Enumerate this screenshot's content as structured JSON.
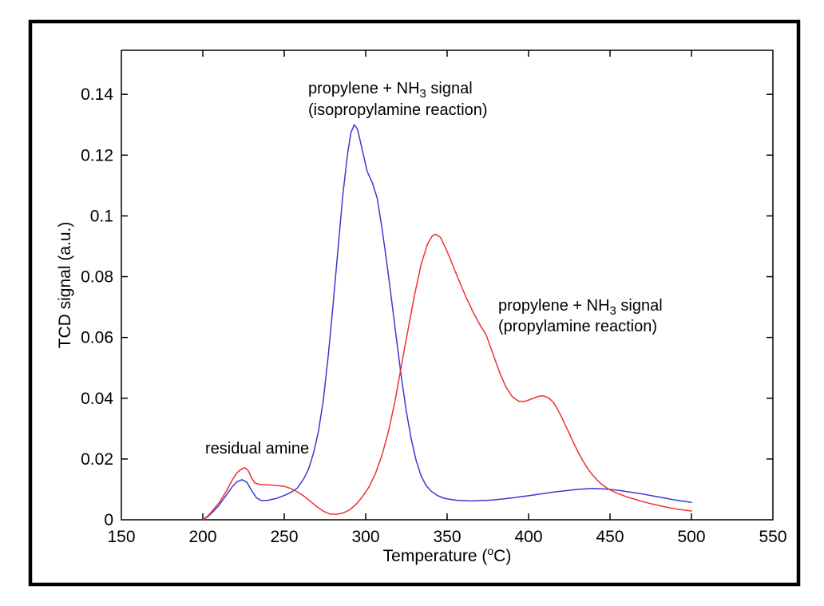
{
  "figure": {
    "background": "#ffffff",
    "frame_color": "#000000",
    "axis_color": "#000000",
    "text_color": "#000000"
  },
  "chart_data": {
    "type": "line",
    "title": "",
    "xlabel": "Temperature (°C)",
    "xlabel_segments": [
      {
        "t": "Temperature ("
      },
      {
        "t": "o",
        "style": "sup"
      },
      {
        "t": "C)"
      }
    ],
    "ylabel": "TCD signal (a.u.)",
    "xlim": [
      150,
      550
    ],
    "ylim": [
      0,
      0.1545
    ],
    "xticks": [
      150,
      200,
      250,
      300,
      350,
      400,
      450,
      500,
      550
    ],
    "xtick_labels": [
      "150",
      "200",
      "250",
      "300",
      "350",
      "400",
      "450",
      "500",
      "550"
    ],
    "yticks": [
      0,
      0.02,
      0.04,
      0.06,
      0.08,
      0.1,
      0.12,
      0.14
    ],
    "ytick_labels": [
      "0",
      "0.02",
      "0.04",
      "0.06",
      "0.08",
      "0.1",
      "0.12",
      "0.14"
    ],
    "grid": false,
    "legend_position": "none",
    "series": [
      {
        "name": "isopropylamine reaction (propylene + NH3 signal)",
        "color": "#3a3ad0",
        "points": [
          [
            200,
            0
          ],
          [
            203,
            0.001
          ],
          [
            206,
            0.0025
          ],
          [
            210,
            0.0048
          ],
          [
            214,
            0.0078
          ],
          [
            218,
            0.0108
          ],
          [
            221,
            0.0125
          ],
          [
            224,
            0.0132
          ],
          [
            227,
            0.0124
          ],
          [
            230,
            0.0096
          ],
          [
            233,
            0.0072
          ],
          [
            236,
            0.0063
          ],
          [
            240,
            0.0064
          ],
          [
            245,
            0.007
          ],
          [
            250,
            0.008
          ],
          [
            254,
            0.009
          ],
          [
            258,
            0.0104
          ],
          [
            262,
            0.0135
          ],
          [
            265,
            0.0168
          ],
          [
            268,
            0.022
          ],
          [
            271,
            0.029
          ],
          [
            274,
            0.0395
          ],
          [
            277,
            0.054
          ],
          [
            280,
            0.071
          ],
          [
            283,
            0.089
          ],
          [
            286,
            0.107
          ],
          [
            289,
            0.121
          ],
          [
            291,
            0.1275
          ],
          [
            293,
            0.13
          ],
          [
            295,
            0.1285
          ],
          [
            298,
            0.1215
          ],
          [
            301,
            0.1145
          ],
          [
            304,
            0.111
          ],
          [
            307,
            0.106
          ],
          [
            310,
            0.096
          ],
          [
            313,
            0.0845
          ],
          [
            316,
            0.072
          ],
          [
            319,
            0.059
          ],
          [
            322,
            0.0465
          ],
          [
            325,
            0.0355
          ],
          [
            328,
            0.0265
          ],
          [
            331,
            0.0195
          ],
          [
            334,
            0.0145
          ],
          [
            337,
            0.0113
          ],
          [
            340,
            0.0095
          ],
          [
            344,
            0.008
          ],
          [
            348,
            0.0071
          ],
          [
            352,
            0.0067
          ],
          [
            356,
            0.0064
          ],
          [
            360,
            0.0063
          ],
          [
            365,
            0.0062
          ],
          [
            370,
            0.0063
          ],
          [
            375,
            0.0064
          ],
          [
            380,
            0.0066
          ],
          [
            385,
            0.0069
          ],
          [
            390,
            0.0072
          ],
          [
            395,
            0.0076
          ],
          [
            400,
            0.0079
          ],
          [
            405,
            0.0083
          ],
          [
            410,
            0.0087
          ],
          [
            415,
            0.0091
          ],
          [
            420,
            0.0094
          ],
          [
            425,
            0.0097
          ],
          [
            430,
            0.01
          ],
          [
            435,
            0.0102
          ],
          [
            440,
            0.0103
          ],
          [
            445,
            0.0102
          ],
          [
            450,
            0.01
          ],
          [
            455,
            0.0097
          ],
          [
            460,
            0.0093
          ],
          [
            465,
            0.0089
          ],
          [
            470,
            0.0085
          ],
          [
            475,
            0.008
          ],
          [
            480,
            0.0075
          ],
          [
            485,
            0.007
          ],
          [
            490,
            0.0065
          ],
          [
            495,
            0.0061
          ],
          [
            500,
            0.0057
          ]
        ]
      },
      {
        "name": "propylamine reaction (propylene + NH3 signal)",
        "color": "#f03030",
        "points": [
          [
            200,
            0
          ],
          [
            203,
            0.0012
          ],
          [
            206,
            0.003
          ],
          [
            210,
            0.0056
          ],
          [
            214,
            0.009
          ],
          [
            218,
            0.013
          ],
          [
            221,
            0.0155
          ],
          [
            224,
            0.0168
          ],
          [
            226,
            0.0171
          ],
          [
            228,
            0.0161
          ],
          [
            230,
            0.0137
          ],
          [
            232,
            0.0121
          ],
          [
            235,
            0.0116
          ],
          [
            240,
            0.0115
          ],
          [
            245,
            0.0113
          ],
          [
            250,
            0.011
          ],
          [
            254,
            0.0103
          ],
          [
            258,
            0.0092
          ],
          [
            262,
            0.0078
          ],
          [
            266,
            0.0061
          ],
          [
            270,
            0.0043
          ],
          [
            274,
            0.0028
          ],
          [
            278,
            0.0019
          ],
          [
            282,
            0.0018
          ],
          [
            286,
            0.0022
          ],
          [
            290,
            0.0032
          ],
          [
            294,
            0.005
          ],
          [
            298,
            0.0076
          ],
          [
            302,
            0.0108
          ],
          [
            306,
            0.0152
          ],
          [
            310,
            0.0212
          ],
          [
            314,
            0.0292
          ],
          [
            318,
            0.039
          ],
          [
            322,
            0.051
          ],
          [
            326,
            0.0625
          ],
          [
            330,
            0.074
          ],
          [
            334,
            0.084
          ],
          [
            338,
            0.0908
          ],
          [
            341,
            0.0935
          ],
          [
            343,
            0.094
          ],
          [
            346,
            0.0929
          ],
          [
            350,
            0.0883
          ],
          [
            354,
            0.083
          ],
          [
            358,
            0.0778
          ],
          [
            362,
            0.0728
          ],
          [
            366,
            0.0683
          ],
          [
            370,
            0.0643
          ],
          [
            374,
            0.0608
          ],
          [
            378,
            0.0548
          ],
          [
            382,
            0.0488
          ],
          [
            386,
            0.0438
          ],
          [
            390,
            0.0405
          ],
          [
            394,
            0.039
          ],
          [
            398,
            0.039
          ],
          [
            402,
            0.0398
          ],
          [
            406,
            0.0406
          ],
          [
            409,
            0.0408
          ],
          [
            412,
            0.0402
          ],
          [
            415,
            0.0388
          ],
          [
            418,
            0.0362
          ],
          [
            421,
            0.033
          ],
          [
            424,
            0.0295
          ],
          [
            427,
            0.026
          ],
          [
            430,
            0.0227
          ],
          [
            433,
            0.0197
          ],
          [
            436,
            0.0171
          ],
          [
            439,
            0.0149
          ],
          [
            442,
            0.0131
          ],
          [
            445,
            0.0116
          ],
          [
            448,
            0.0105
          ],
          [
            451,
            0.0096
          ],
          [
            455,
            0.0086
          ],
          [
            460,
            0.0076
          ],
          [
            465,
            0.0068
          ],
          [
            470,
            0.006
          ],
          [
            475,
            0.0053
          ],
          [
            480,
            0.0047
          ],
          [
            485,
            0.0041
          ],
          [
            490,
            0.0036
          ],
          [
            495,
            0.0032
          ],
          [
            500,
            0.0029
          ]
        ]
      }
    ],
    "annotations": [
      {
        "id": "isopropylamine-label",
        "plain": [
          "propylene + NH3 signal",
          "(isopropylamine reaction)"
        ],
        "lines": [
          [
            {
              "t": "propylene + NH"
            },
            {
              "t": "3",
              "style": "sub"
            },
            {
              "t": " signal"
            }
          ],
          [
            {
              "t": "(isopropylamine reaction)"
            }
          ]
        ]
      },
      {
        "id": "propylamine-label",
        "plain": [
          "propylene + NH3 signal",
          "(propylamine reaction)"
        ],
        "lines": [
          [
            {
              "t": "propylene + NH"
            },
            {
              "t": "3",
              "style": "sub"
            },
            {
              "t": " signal"
            }
          ],
          [
            {
              "t": "(propylamine reaction)"
            }
          ]
        ]
      },
      {
        "id": "residual-amine-label",
        "plain": [
          "residual amine"
        ],
        "lines": [
          [
            {
              "t": "residual amine"
            }
          ]
        ]
      }
    ]
  }
}
